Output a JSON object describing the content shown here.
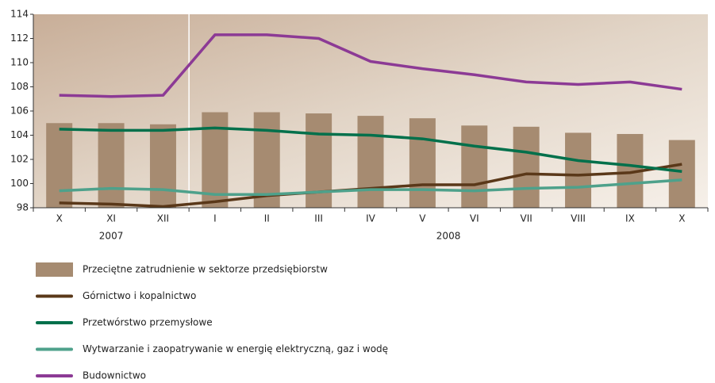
{
  "chart_data": {
    "type": "bar",
    "categories": [
      "X",
      "XI",
      "XII",
      "I",
      "II",
      "III",
      "IV",
      "V",
      "VI",
      "VII",
      "VIII",
      "IX",
      "X"
    ],
    "year_groups": [
      {
        "label": "2007",
        "from": 0,
        "to": 2
      },
      {
        "label": "2008",
        "from": 3,
        "to": 12
      }
    ],
    "ylim": [
      98,
      114
    ],
    "yticks": [
      98,
      100,
      102,
      104,
      106,
      108,
      110,
      112,
      114
    ],
    "series": [
      {
        "name": "Przeciętne zatrudnienie w sektorze przedsiębiorstw",
        "type": "bar",
        "color": "#a68b71",
        "values": [
          105.0,
          105.0,
          104.9,
          105.9,
          105.9,
          105.8,
          105.6,
          105.4,
          104.8,
          104.7,
          104.2,
          104.1,
          103.6
        ]
      },
      {
        "name": "Górnictwo i kopalnictwo",
        "type": "line",
        "color": "#5a3819",
        "values": [
          98.4,
          98.3,
          98.1,
          98.5,
          99.0,
          99.3,
          99.6,
          99.9,
          99.9,
          100.8,
          100.7,
          100.9,
          101.6
        ]
      },
      {
        "name": "Przetwórstwo przemysłowe",
        "type": "line",
        "color": "#00704b",
        "values": [
          104.5,
          104.4,
          104.4,
          104.6,
          104.4,
          104.1,
          104.0,
          103.7,
          103.1,
          102.6,
          101.9,
          101.5,
          101.0
        ]
      },
      {
        "name": "Wytwarzanie i zaopatrywanie w energię elektryczną, gaz i wodę",
        "type": "line",
        "color": "#4ea18b",
        "values": [
          99.4,
          99.6,
          99.5,
          99.1,
          99.1,
          99.3,
          99.5,
          99.5,
          99.4,
          99.6,
          99.7,
          100.0,
          100.3
        ]
      },
      {
        "name": "Budownictwo",
        "type": "line",
        "color": "#8c3a95",
        "values": [
          107.3,
          107.2,
          107.3,
          112.3,
          112.3,
          112.0,
          110.1,
          109.5,
          109.0,
          108.4,
          108.2,
          108.4,
          107.8
        ]
      }
    ]
  }
}
